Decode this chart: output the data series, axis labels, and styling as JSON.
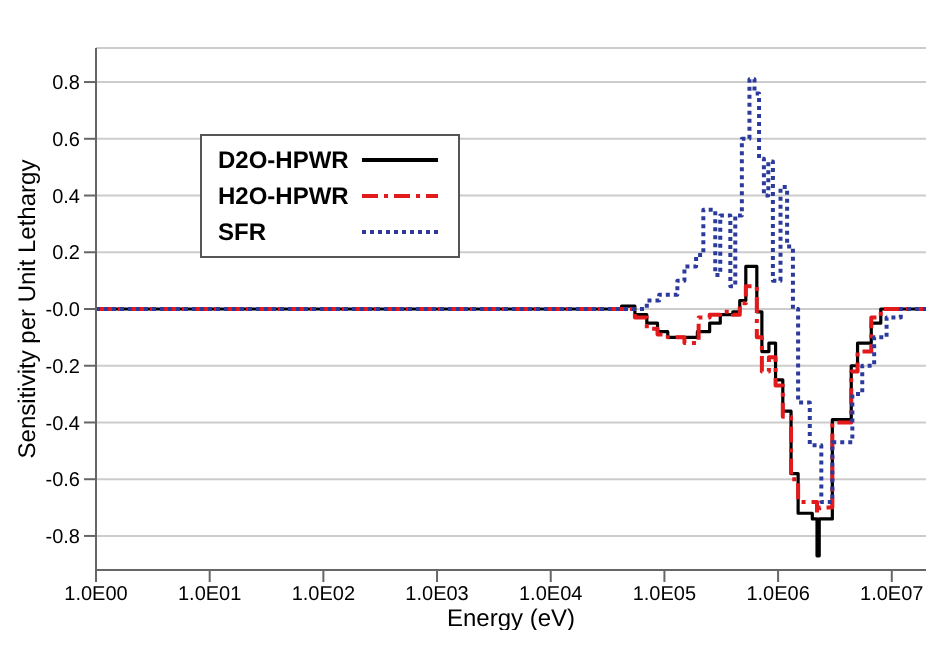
{
  "chart_data": {
    "type": "step",
    "xlabel": "Energy (eV)",
    "ylabel": "Sensitivity per Unit Lethargy",
    "log": "x",
    "grid": "y",
    "legend": "top left",
    "xlim": [
      1,
      20000000
    ],
    "ylim": [
      -0.92,
      0.92
    ],
    "xticks": [
      {
        "value": 1,
        "label": "1.0E00"
      },
      {
        "value": 10,
        "label": "1.0E01"
      },
      {
        "value": 100,
        "label": "1.0E02"
      },
      {
        "value": 1000,
        "label": "1.0E03"
      },
      {
        "value": 10000,
        "label": "1.0E04"
      },
      {
        "value": 100000,
        "label": "1.0E05"
      },
      {
        "value": 1000000,
        "label": "1.0E06"
      },
      {
        "value": 10000000,
        "label": "1.0E07"
      }
    ],
    "yticks": [
      {
        "value": -0.8,
        "label": "-0.8"
      },
      {
        "value": -0.6,
        "label": "-0.6"
      },
      {
        "value": -0.4,
        "label": "-0.4"
      },
      {
        "value": -0.2,
        "label": "-0.2"
      },
      {
        "value": 0,
        "label": "-0.0"
      },
      {
        "value": 0.2,
        "label": "0.2"
      },
      {
        "value": 0.4,
        "label": "0.4"
      },
      {
        "value": 0.6,
        "label": "0.6"
      },
      {
        "value": 0.8,
        "label": "0.8"
      }
    ],
    "series": [
      {
        "name": "D2O-HPWR",
        "color": "#000000",
        "line_style": "solid",
        "x": [
          1,
          42000,
          55000,
          70000,
          87000,
          107000,
          195000,
          250000,
          310000,
          400000,
          460000,
          520000,
          650000,
          720000,
          830000,
          950000,
          1100000,
          1300000,
          1500000,
          2000000,
          2200000,
          2300000,
          3000000,
          4400000,
          5000000,
          6600000,
          8000000,
          20000000
        ],
        "values": [
          0,
          0.01,
          -0.02,
          -0.05,
          -0.08,
          -0.1,
          -0.08,
          -0.05,
          -0.02,
          -0.01,
          0.03,
          0.15,
          -0.01,
          -0.15,
          -0.12,
          -0.25,
          -0.36,
          -0.58,
          -0.72,
          -0.74,
          -0.87,
          -0.74,
          -0.39,
          -0.2,
          -0.12,
          -0.05,
          0,
          0
        ]
      },
      {
        "name": "H2O-HPWR",
        "color": "#e31a1c",
        "line_style": "dashed",
        "x": [
          1,
          45000,
          55000,
          70000,
          87000,
          107000,
          150000,
          200000,
          250000,
          310000,
          400000,
          460000,
          520000,
          650000,
          720000,
          830000,
          950000,
          1100000,
          1300000,
          1500000,
          2200000,
          2300000,
          3000000,
          4400000,
          5000000,
          6600000,
          8000000,
          20000000
        ],
        "values": [
          0,
          0,
          -0.03,
          -0.07,
          -0.09,
          -0.1,
          -0.12,
          -0.03,
          -0.02,
          -0.01,
          -0.02,
          0.02,
          0.08,
          -0.1,
          -0.22,
          -0.17,
          -0.27,
          -0.38,
          -0.6,
          -0.68,
          -0.72,
          -0.7,
          -0.4,
          -0.22,
          -0.15,
          -0.03,
          0,
          0
        ]
      },
      {
        "name": "SFR",
        "color": "#2b3a9c",
        "line_style": "dotted",
        "x": [
          1,
          65000,
          70000,
          90000,
          130000,
          150000,
          190000,
          220000,
          280000,
          310000,
          380000,
          420000,
          480000,
          560000,
          620000,
          680000,
          750000,
          820000,
          900000,
          1050000,
          1200000,
          1350000,
          1500000,
          1900000,
          2400000,
          3000000,
          4500000,
          5500000,
          7000000,
          9000000,
          12000000,
          20000000
        ],
        "values": [
          0,
          0,
          0.03,
          0.05,
          0.1,
          0.15,
          0.19,
          0.35,
          0.12,
          0.33,
          0.08,
          0.33,
          0.6,
          0.81,
          0.76,
          0.53,
          0.4,
          0.52,
          0.1,
          0.43,
          0.22,
          0,
          -0.33,
          -0.48,
          -0.68,
          -0.47,
          -0.3,
          -0.2,
          -0.1,
          -0.03,
          0,
          0
        ]
      }
    ]
  }
}
